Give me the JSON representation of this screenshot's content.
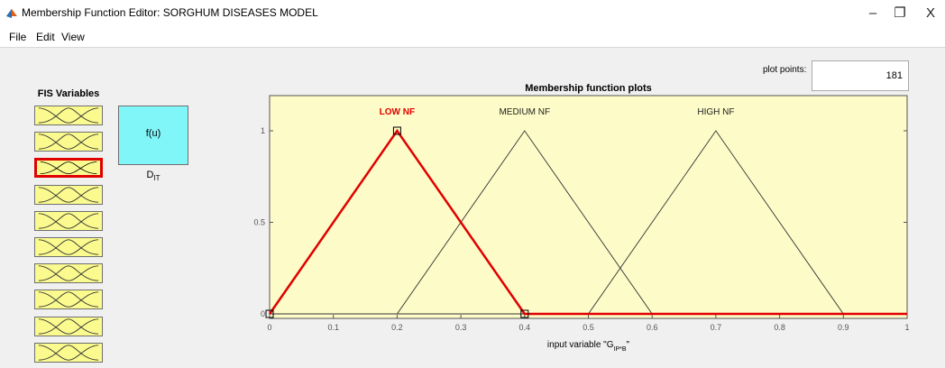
{
  "window": {
    "title": "Membership Function Editor: SORGHUM DISEASES MODEL",
    "app_icon": "matlab-icon",
    "minimize_glyph": "–",
    "restore_glyph": "❐",
    "close_glyph": "X"
  },
  "menu": {
    "items": [
      "File",
      "Edit",
      "View"
    ]
  },
  "fis_panel": {
    "title": "FIS Variables",
    "input_count": 10,
    "selected_index": 2,
    "rule_box_label": "f(u)",
    "output_label_main": "D",
    "output_label_sub": "IT"
  },
  "plot_points": {
    "label": "plot points:",
    "value": "181"
  },
  "colors": {
    "plot_bg": "#fdfbc7",
    "input_box": "#fafa8e",
    "output_box": "#80f6f8",
    "selected": "#e00000"
  },
  "chart_data": {
    "type": "line",
    "title": "Membership function plots",
    "xlabel_main": "input variable \"G",
    "xlabel_sub": "IP*B",
    "xlabel_end": "\"",
    "xlim": [
      0,
      1
    ],
    "ylim": [
      0,
      1.1
    ],
    "x_ticks": [
      "0",
      "0.1",
      "0.2",
      "0.3",
      "0.4",
      "0.5",
      "0.6",
      "0.7",
      "0.8",
      "0.9",
      "1"
    ],
    "y_ticks": [
      "0",
      "0.5",
      "1"
    ],
    "selected_series": 0,
    "series": [
      {
        "name": "LOW NF",
        "shape": "trimf",
        "params": [
          0,
          0.2,
          0.4
        ]
      },
      {
        "name": "MEDIUM NF",
        "shape": "trimf",
        "params": [
          0.2,
          0.4,
          0.6
        ]
      },
      {
        "name": "HIGH NF",
        "shape": "trimf",
        "params": [
          0.5,
          0.7,
          0.9
        ]
      }
    ]
  }
}
